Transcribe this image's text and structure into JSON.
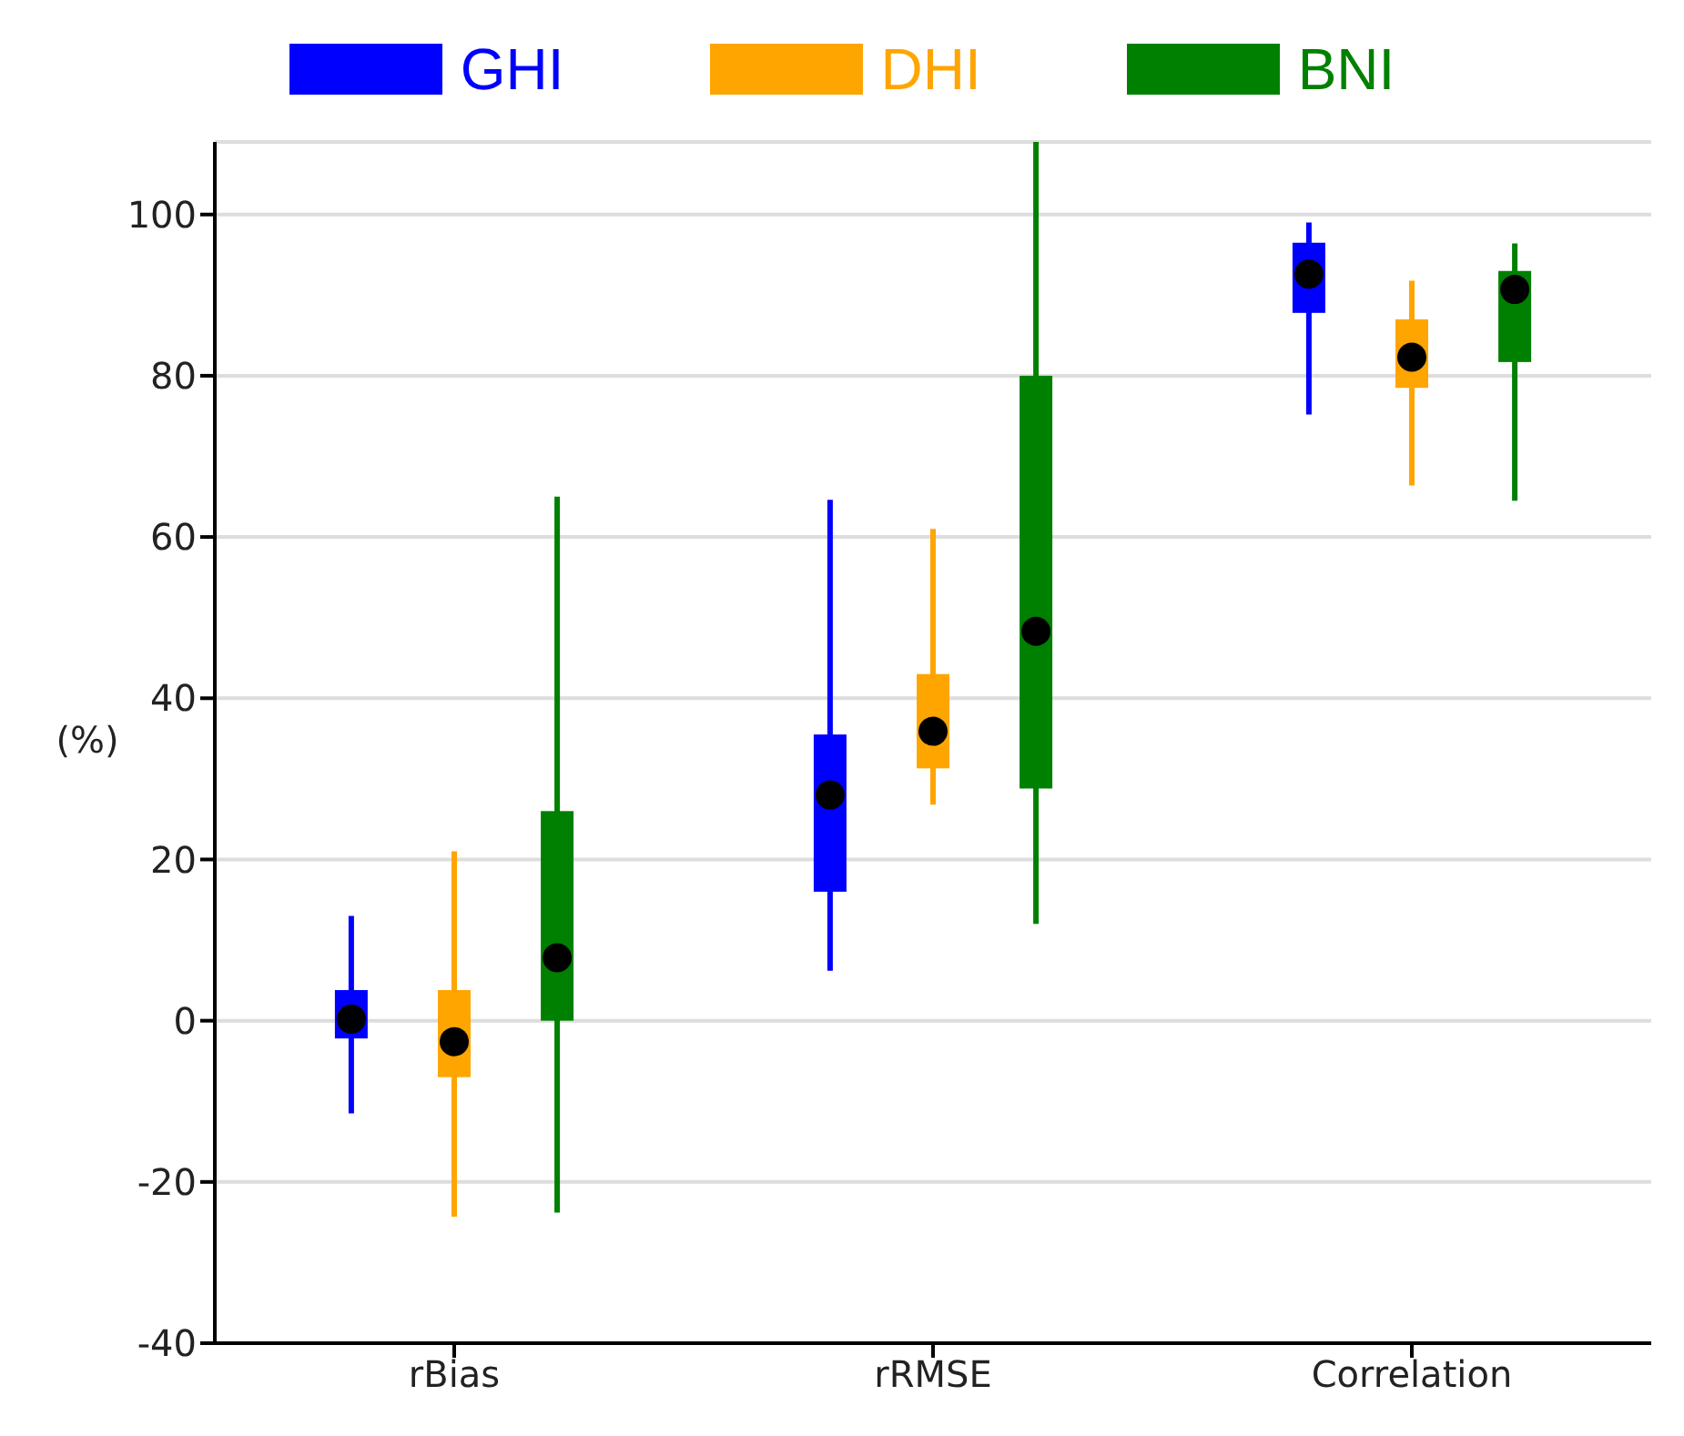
{
  "chart_data": {
    "type": "box",
    "ylabel": "(%)",
    "categories": [
      "rBias",
      "rRMSE",
      "Correlation"
    ],
    "series": [
      {
        "name": "GHI",
        "color": "#0000ff",
        "boxes": [
          {
            "low": -11.5,
            "q1": -2.2,
            "median": 0.2,
            "q3": 3.8,
            "high": 13
          },
          {
            "low": 6.2,
            "q1": 16,
            "median": 28,
            "q3": 35.5,
            "high": 64.6
          },
          {
            "low": 75.2,
            "q1": 87.8,
            "median": 92.6,
            "q3": 96.5,
            "high": 99
          }
        ]
      },
      {
        "name": "DHI",
        "color": "#ffa500",
        "boxes": [
          {
            "low": -24.3,
            "q1": -7,
            "median": -2.6,
            "q3": 3.8,
            "high": 21
          },
          {
            "low": 26.8,
            "q1": 31.3,
            "median": 35.9,
            "q3": 43,
            "high": 61
          },
          {
            "low": 66.4,
            "q1": 78.5,
            "median": 82.3,
            "q3": 87,
            "high": 91.8
          }
        ]
      },
      {
        "name": "BNI",
        "color": "#008000",
        "boxes": [
          {
            "low": -23.8,
            "q1": 0,
            "median": 7.8,
            "q3": 26,
            "high": 65
          },
          {
            "low": 12,
            "q1": 28.8,
            "median": 48.3,
            "q3": 80,
            "high": 109
          },
          {
            "low": 64.5,
            "q1": 81.7,
            "median": 90.7,
            "q3": 93,
            "high": 96.4
          }
        ]
      }
    ],
    "ylim": [
      -40,
      109
    ],
    "yticks": [
      -40,
      -20,
      0,
      20,
      40,
      60,
      80,
      100
    ],
    "grid": "y",
    "legend": "top"
  }
}
